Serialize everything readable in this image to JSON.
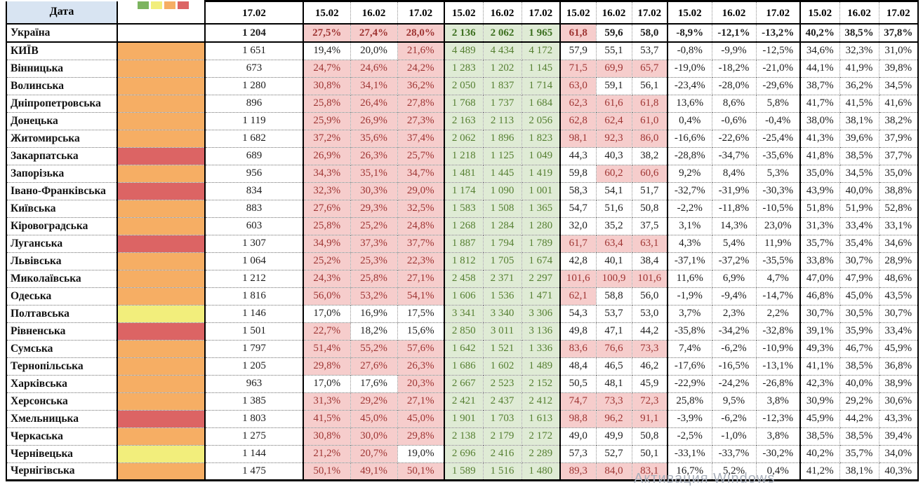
{
  "header": {
    "date_label": "Дата",
    "single_date": "17.02",
    "group_dates": [
      "15.02",
      "16.02",
      "17.02"
    ],
    "groups_count": 5
  },
  "legend": {
    "swatches": [
      "green",
      "yellow",
      "orange",
      "red"
    ],
    "colors": {
      "green": "#7CB45F",
      "yellow": "#F2EE7C",
      "orange": "#F6AE64",
      "red": "#DC6464"
    }
  },
  "colors": {
    "header_blue": "#D8E4F2",
    "pink_bg": "#F6CDCC",
    "red_text": "#9E3432",
    "green_bg": "#DFEBD5",
    "green_text": "#557F31"
  },
  "thresholds": {
    "pct_pink_above": 20,
    "load_pink_from": 60
  },
  "watermark": "Активация Windows",
  "table": {
    "rows": [
      {
        "name": "Україна",
        "swatch": null,
        "bold": true,
        "total": "1 204",
        "pct": [
          "27,5%",
          "27,4%",
          "28,0%"
        ],
        "abs": [
          "2 136",
          "2 062",
          "1 965"
        ],
        "load": [
          "61,8",
          "59,6",
          "58,0"
        ],
        "delta": [
          "-8,9%",
          "-12,1%",
          "-13,2%"
        ],
        "share": [
          "40,2%",
          "38,5%",
          "37,8%"
        ]
      },
      {
        "name": "КИЇВ",
        "swatch": "orange",
        "total": "1 651",
        "pct": [
          "19,4%",
          "20,0%",
          "21,6%"
        ],
        "abs": [
          "4 489",
          "4 434",
          "4 172"
        ],
        "load": [
          "57,9",
          "55,1",
          "53,7"
        ],
        "delta": [
          "-0,8%",
          "-9,9%",
          "-12,5%"
        ],
        "share": [
          "34,6%",
          "32,3%",
          "31,0%"
        ]
      },
      {
        "name": "Вінницька",
        "swatch": "orange",
        "total": "673",
        "pct": [
          "24,7%",
          "24,6%",
          "24,2%"
        ],
        "abs": [
          "1 283",
          "1 202",
          "1 145"
        ],
        "load": [
          "71,5",
          "69,9",
          "65,7"
        ],
        "delta": [
          "-19,0%",
          "-18,2%",
          "-21,0%"
        ],
        "share": [
          "44,1%",
          "41,9%",
          "39,8%"
        ]
      },
      {
        "name": "Волинська",
        "swatch": "orange",
        "total": "1 280",
        "pct": [
          "30,8%",
          "34,1%",
          "36,2%"
        ],
        "abs": [
          "2 050",
          "1 837",
          "1 714"
        ],
        "load": [
          "63,0",
          "59,1",
          "56,1"
        ],
        "delta": [
          "-23,4%",
          "-28,0%",
          "-29,6%"
        ],
        "share": [
          "38,7%",
          "36,2%",
          "34,5%"
        ]
      },
      {
        "name": "Дніпропетровська",
        "swatch": "orange",
        "total": "896",
        "pct": [
          "25,8%",
          "26,4%",
          "27,8%"
        ],
        "abs": [
          "1 768",
          "1 737",
          "1 684"
        ],
        "load": [
          "62,3",
          "61,6",
          "61,8"
        ],
        "delta": [
          "13,6%",
          "8,6%",
          "5,8%"
        ],
        "share": [
          "41,7%",
          "41,5%",
          "41,6%"
        ]
      },
      {
        "name": "Донецька",
        "swatch": "orange",
        "total": "1 119",
        "pct": [
          "25,9%",
          "26,9%",
          "27,3%"
        ],
        "abs": [
          "2 163",
          "2 113",
          "2 056"
        ],
        "load": [
          "62,8",
          "62,4",
          "61,0"
        ],
        "delta": [
          "0,4%",
          "-0,6%",
          "-0,4%"
        ],
        "share": [
          "38,0%",
          "38,1%",
          "38,2%"
        ]
      },
      {
        "name": "Житомирська",
        "swatch": "orange",
        "total": "1 682",
        "pct": [
          "37,2%",
          "35,6%",
          "37,4%"
        ],
        "abs": [
          "2 062",
          "1 896",
          "1 823"
        ],
        "load": [
          "98,1",
          "92,3",
          "86,0"
        ],
        "delta": [
          "-16,6%",
          "-22,6%",
          "-25,4%"
        ],
        "share": [
          "41,3%",
          "39,6%",
          "37,9%"
        ]
      },
      {
        "name": "Закарпатська",
        "swatch": "red",
        "total": "689",
        "pct": [
          "26,9%",
          "26,3%",
          "25,7%"
        ],
        "abs": [
          "1 218",
          "1 125",
          "1 049"
        ],
        "load": [
          "44,3",
          "40,3",
          "38,2"
        ],
        "delta": [
          "-28,8%",
          "-34,7%",
          "-35,6%"
        ],
        "share": [
          "41,8%",
          "38,5%",
          "37,7%"
        ]
      },
      {
        "name": "Запорізька",
        "swatch": "orange",
        "total": "956",
        "pct": [
          "34,3%",
          "35,1%",
          "34,7%"
        ],
        "abs": [
          "1 481",
          "1 445",
          "1 419"
        ],
        "load": [
          "59,8",
          "60,2",
          "60,6"
        ],
        "delta": [
          "9,2%",
          "8,4%",
          "5,3%"
        ],
        "share": [
          "35,0%",
          "34,5%",
          "35,0%"
        ]
      },
      {
        "name": "Івано-Франківська",
        "swatch": "red",
        "total": "834",
        "pct": [
          "32,3%",
          "30,3%",
          "29,0%"
        ],
        "abs": [
          "1 174",
          "1 090",
          "1 001"
        ],
        "load": [
          "58,3",
          "54,1",
          "51,7"
        ],
        "delta": [
          "-32,7%",
          "-31,9%",
          "-30,3%"
        ],
        "share": [
          "43,9%",
          "40,0%",
          "38,8%"
        ]
      },
      {
        "name": "Київська",
        "swatch": "orange",
        "total": "883",
        "pct": [
          "27,6%",
          "29,3%",
          "32,5%"
        ],
        "abs": [
          "1 583",
          "1 508",
          "1 365"
        ],
        "load": [
          "54,7",
          "51,6",
          "50,8"
        ],
        "delta": [
          "-2,2%",
          "-11,8%",
          "-10,5%"
        ],
        "share": [
          "51,8%",
          "51,9%",
          "52,8%"
        ]
      },
      {
        "name": "Кіровоградська",
        "swatch": "orange",
        "total": "603",
        "pct": [
          "25,8%",
          "25,2%",
          "24,8%"
        ],
        "abs": [
          "1 268",
          "1 284",
          "1 280"
        ],
        "load": [
          "32,0",
          "35,2",
          "37,5"
        ],
        "delta": [
          "3,1%",
          "14,3%",
          "23,0%"
        ],
        "share": [
          "31,3%",
          "33,4%",
          "33,1%"
        ]
      },
      {
        "name": "Луганська",
        "swatch": "red",
        "total": "1 307",
        "pct": [
          "34,9%",
          "37,3%",
          "37,7%"
        ],
        "abs": [
          "1 887",
          "1 794",
          "1 789"
        ],
        "load": [
          "61,7",
          "63,4",
          "63,1"
        ],
        "delta": [
          "4,3%",
          "5,4%",
          "11,9%"
        ],
        "share": [
          "35,7%",
          "35,4%",
          "34,6%"
        ]
      },
      {
        "name": "Львівська",
        "swatch": "orange",
        "total": "1 064",
        "pct": [
          "25,2%",
          "25,3%",
          "22,3%"
        ],
        "abs": [
          "1 812",
          "1 705",
          "1 674"
        ],
        "load": [
          "42,8",
          "40,1",
          "38,4"
        ],
        "delta": [
          "-37,1%",
          "-37,2%",
          "-35,5%"
        ],
        "share": [
          "33,8%",
          "30,7%",
          "28,9%"
        ]
      },
      {
        "name": "Миколаївська",
        "swatch": "orange",
        "total": "1 212",
        "pct": [
          "24,3%",
          "25,8%",
          "27,1%"
        ],
        "abs": [
          "2 458",
          "2 371",
          "2 297"
        ],
        "load": [
          "101,6",
          "100,9",
          "101,6"
        ],
        "delta": [
          "11,6%",
          "6,9%",
          "4,7%"
        ],
        "share": [
          "47,0%",
          "47,9%",
          "48,6%"
        ]
      },
      {
        "name": "Одеська",
        "swatch": "orange",
        "total": "1 816",
        "pct": [
          "56,0%",
          "53,2%",
          "54,1%"
        ],
        "abs": [
          "1 606",
          "1 536",
          "1 471"
        ],
        "load": [
          "62,1",
          "58,8",
          "56,0"
        ],
        "delta": [
          "-1,9%",
          "-9,4%",
          "-14,7%"
        ],
        "share": [
          "46,8%",
          "45,0%",
          "43,5%"
        ]
      },
      {
        "name": "Полтавська",
        "swatch": "yellow",
        "total": "1 146",
        "pct": [
          "17,0%",
          "16,9%",
          "17,5%"
        ],
        "abs": [
          "3 341",
          "3 340",
          "3 306"
        ],
        "load": [
          "54,3",
          "53,7",
          "53,0"
        ],
        "delta": [
          "3,7%",
          "2,3%",
          "2,2%"
        ],
        "share": [
          "30,7%",
          "30,5%",
          "30,7%"
        ]
      },
      {
        "name": "Рівненська",
        "swatch": "red",
        "total": "1 501",
        "pct": [
          "22,7%",
          "18,2%",
          "15,6%"
        ],
        "abs": [
          "2 850",
          "3 011",
          "3 136"
        ],
        "load": [
          "49,8",
          "47,1",
          "44,2"
        ],
        "delta": [
          "-35,8%",
          "-34,2%",
          "-32,8%"
        ],
        "share": [
          "39,1%",
          "35,9%",
          "33,4%"
        ]
      },
      {
        "name": "Сумська",
        "swatch": "orange",
        "total": "1 797",
        "pct": [
          "51,4%",
          "55,2%",
          "57,6%"
        ],
        "abs": [
          "1 642",
          "1 521",
          "1 336"
        ],
        "load": [
          "83,6",
          "76,6",
          "73,3"
        ],
        "delta": [
          "7,4%",
          "-6,2%",
          "-10,9%"
        ],
        "share": [
          "49,3%",
          "46,7%",
          "45,9%"
        ]
      },
      {
        "name": "Тернопільська",
        "swatch": "orange",
        "total": "1 205",
        "pct": [
          "29,8%",
          "27,6%",
          "26,3%"
        ],
        "abs": [
          "1 686",
          "1 602",
          "1 489"
        ],
        "load": [
          "48,4",
          "46,5",
          "46,2"
        ],
        "delta": [
          "-17,6%",
          "-16,5%",
          "-13,1%"
        ],
        "share": [
          "41,1%",
          "38,5%",
          "36,8%"
        ]
      },
      {
        "name": "Харківська",
        "swatch": "orange",
        "total": "963",
        "pct": [
          "17,0%",
          "17,6%",
          "20,3%"
        ],
        "abs": [
          "2 667",
          "2 523",
          "2 152"
        ],
        "load": [
          "50,5",
          "48,1",
          "45,9"
        ],
        "delta": [
          "-22,9%",
          "-24,2%",
          "-26,8%"
        ],
        "share": [
          "42,3%",
          "40,0%",
          "38,9%"
        ]
      },
      {
        "name": "Херсонська",
        "swatch": "orange",
        "total": "1 385",
        "pct": [
          "31,3%",
          "29,2%",
          "27,1%"
        ],
        "abs": [
          "2 421",
          "2 437",
          "2 412"
        ],
        "load": [
          "74,7",
          "73,3",
          "72,3"
        ],
        "delta": [
          "25,8%",
          "9,5%",
          "3,8%"
        ],
        "share": [
          "30,9%",
          "29,2%",
          "30,6%"
        ]
      },
      {
        "name": "Хмельницька",
        "swatch": "red",
        "total": "1 803",
        "pct": [
          "41,5%",
          "45,0%",
          "45,0%"
        ],
        "abs": [
          "1 901",
          "1 703",
          "1 613"
        ],
        "load": [
          "98,8",
          "96,2",
          "91,1"
        ],
        "delta": [
          "-3,9%",
          "-6,2%",
          "-12,3%"
        ],
        "share": [
          "45,9%",
          "44,2%",
          "43,3%"
        ]
      },
      {
        "name": "Черкаська",
        "swatch": "orange",
        "total": "1 275",
        "pct": [
          "30,8%",
          "30,0%",
          "29,8%"
        ],
        "abs": [
          "2 138",
          "2 179",
          "2 172"
        ],
        "load": [
          "49,0",
          "49,9",
          "50,8"
        ],
        "delta": [
          "-2,5%",
          "-1,0%",
          "3,8%"
        ],
        "share": [
          "38,5%",
          "38,5%",
          "39,4%"
        ]
      },
      {
        "name": "Чернівецька",
        "swatch": "yellow",
        "total": "1 144",
        "pct": [
          "21,2%",
          "20,7%",
          "19,0%"
        ],
        "abs": [
          "2 696",
          "2 416",
          "2 289"
        ],
        "load": [
          "57,3",
          "52,7",
          "50,1"
        ],
        "delta": [
          "-33,1%",
          "-33,7%",
          "-30,2%"
        ],
        "share": [
          "40,2%",
          "35,7%",
          "34,0%"
        ]
      },
      {
        "name": "Чернігівська",
        "swatch": "orange",
        "total": "1 475",
        "pct": [
          "50,1%",
          "49,1%",
          "50,1%"
        ],
        "abs": [
          "1 589",
          "1 516",
          "1 480"
        ],
        "load": [
          "89,3",
          "84,0",
          "83,1"
        ],
        "delta": [
          "16,7%",
          "5,2%",
          "0,4%"
        ],
        "share": [
          "41,2%",
          "38,1%",
          "40,3%"
        ]
      }
    ]
  }
}
